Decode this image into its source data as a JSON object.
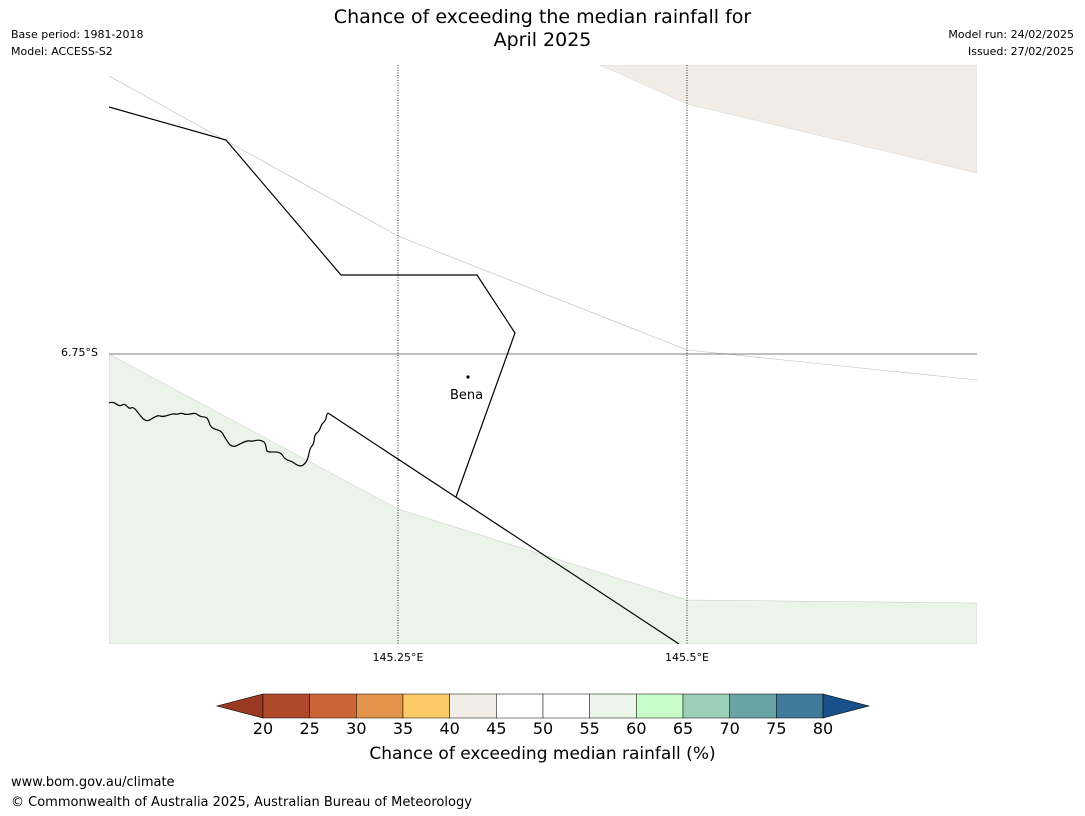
{
  "title": {
    "line1": "Chance of exceeding the median rainfall for",
    "line2": "April 2025"
  },
  "meta_left": {
    "base_period": "Base period: 1981-2018",
    "model": "Model: ACCESS-S2"
  },
  "meta_right": {
    "model_run": "Model run: 24/02/2025",
    "issued": "Issued: 27/02/2025"
  },
  "map": {
    "lat_labels": [
      "6.75°S"
    ],
    "lon_labels": [
      "145.25°E",
      "145.5°E"
    ],
    "place": {
      "name": "Bena"
    },
    "fill_colors": {
      "land_40_45": "#f1ece5",
      "land_55_60": "#eaf4e8"
    }
  },
  "colorbar": {
    "title": "Chance of exceeding median rainfall (%)",
    "ticks": [
      "20",
      "25",
      "30",
      "35",
      "40",
      "45",
      "50",
      "55",
      "60",
      "65",
      "70",
      "75",
      "80"
    ],
    "under_color": "#9b3a22",
    "over_color": "#17508a",
    "colors": [
      "#b0482a",
      "#cd6436",
      "#e2954a",
      "#fdcb66",
      "#f2ede6",
      "#ffffff",
      "#ffffff",
      "#ebf5e9",
      "#c8fcc8",
      "#9bcfb8",
      "#6aa3a6",
      "#3f7a9b"
    ]
  },
  "footer": {
    "url": "www.bom.gov.au/climate",
    "copyright": "© Commonwealth of Australia 2025, Australian Bureau of Meteorology"
  }
}
